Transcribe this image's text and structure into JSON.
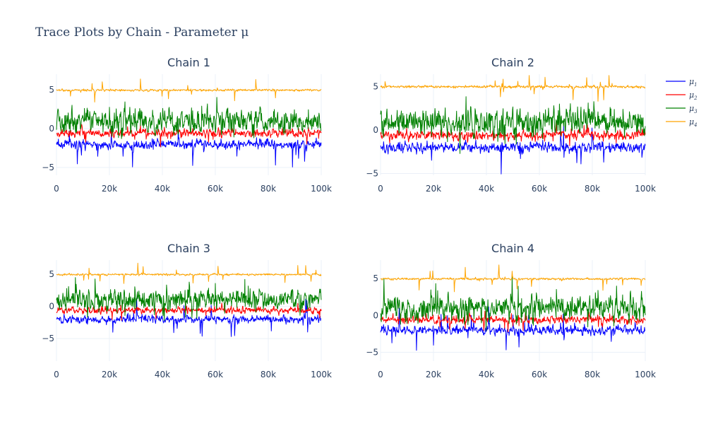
{
  "figure": {
    "title": "Trace Plots by Chain - Parameter μ"
  },
  "chart_data": {
    "type": "line",
    "x_range": [
      0,
      100000
    ],
    "x_tick_values": [
      0,
      20000,
      40000,
      60000,
      80000,
      100000
    ],
    "x_tick_labels": [
      "0",
      "20k",
      "40k",
      "60k",
      "80k",
      "100k"
    ],
    "y_tick_values": [
      -5,
      0,
      5
    ],
    "y_tick_labels": [
      "−5",
      "0",
      "5"
    ],
    "grid": true,
    "legend_placement": "top-right",
    "series": [
      {
        "name": "μ1",
        "label_base": "μ",
        "label_sub": "1",
        "color": "#0000ff",
        "center": -2.0,
        "spread": 0.5,
        "tail": 3.0
      },
      {
        "name": "μ2",
        "label_base": "μ",
        "label_sub": "2",
        "color": "#ff0000",
        "center": -0.6,
        "spread": 0.45,
        "tail": 1.5
      },
      {
        "name": "μ3",
        "label_base": "μ",
        "label_sub": "3",
        "color": "#008000",
        "center": 1.0,
        "spread": 1.3,
        "tail": 3.5
      },
      {
        "name": "μ4",
        "label_base": "μ",
        "label_sub": "4",
        "color": "#ffa500",
        "center": 4.95,
        "spread": 0.12,
        "tail": 1.7
      }
    ],
    "panels": [
      {
        "title": "Chain 1",
        "ylim": [
          -6.0,
          7.0
        ]
      },
      {
        "title": "Chain 2",
        "ylim": [
          -5.2,
          6.4
        ]
      },
      {
        "title": "Chain 3",
        "ylim": [
          -8.5,
          7.2
        ]
      },
      {
        "title": "Chain 4",
        "ylim": [
          -6.2,
          7.5
        ]
      }
    ]
  }
}
